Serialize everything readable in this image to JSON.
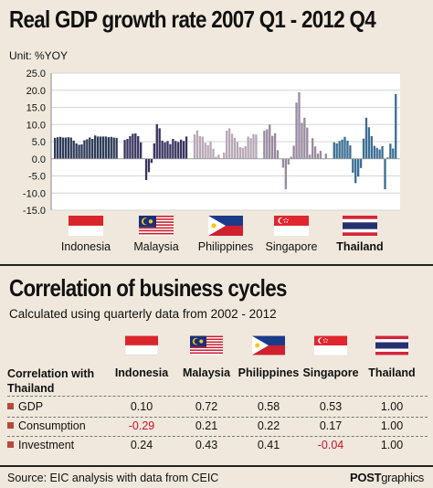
{
  "header": {
    "title": "Real GDP growth rate 2007 Q1 - 2012 Q4",
    "unit": "Unit: %YOY"
  },
  "chart_data": {
    "type": "bar",
    "title": "Real GDP growth rate 2007 Q1 - 2012 Q4",
    "ylabel": "%YOY",
    "ylim": [
      -15,
      25
    ],
    "yticks": [
      "25.0",
      "20.0",
      "15.0",
      "10.0",
      "5.0",
      "0.0",
      "-5.0",
      "-10.0",
      "-15.0"
    ],
    "grid": true,
    "series": [
      {
        "name": "Indonesia",
        "color": "#2e3d58",
        "values": [
          6.1,
          6.3,
          6.4,
          6.2,
          6.2,
          6.3,
          6.2,
          5.3,
          4.5,
          4.1,
          4.2,
          5.4,
          5.7,
          6.2,
          5.8,
          6.8,
          6.5,
          6.5,
          6.5,
          6.5,
          6.3,
          6.4,
          6.2,
          6.1
        ]
      },
      {
        "name": "Malaysia",
        "color": "#3a3560",
        "values": [
          5.5,
          5.8,
          6.6,
          7.3,
          7.4,
          6.6,
          4.8,
          0.1,
          -6.2,
          -3.9,
          -1.2,
          4.5,
          10.1,
          8.9,
          5.3,
          4.8,
          5.2,
          4.3,
          5.8,
          5.2,
          4.9,
          5.6,
          5.2,
          6.5
        ]
      },
      {
        "name": "Philippines",
        "color": "#b8a9b7",
        "values": [
          7.1,
          8.3,
          6.6,
          6.5,
          4.7,
          4.0,
          5.1,
          2.9,
          0.6,
          1.2,
          0.2,
          1.8,
          8.2,
          8.9,
          7.3,
          6.1,
          4.9,
          3.4,
          3.2,
          3.7,
          6.5,
          6.0,
          7.2,
          7.1
        ]
      },
      {
        "name": "Singapore",
        "color": "#9a8ba0",
        "values": [
          8.2,
          8.6,
          10.0,
          6.7,
          7.5,
          2.5,
          0.0,
          -2.6,
          -8.9,
          -1.7,
          0.6,
          3.8,
          16.4,
          19.4,
          10.5,
          12.0,
          9.1,
          1.2,
          6.0,
          3.6,
          1.5,
          2.3,
          0.0,
          1.5
        ]
      },
      {
        "name": "Thailand",
        "color": "#3b6f93",
        "values": [
          4.8,
          4.5,
          5.2,
          5.6,
          6.4,
          5.3,
          3.9,
          -4.1,
          -7.1,
          -5.2,
          -2.7,
          5.9,
          12.0,
          9.2,
          6.6,
          3.8,
          3.2,
          2.7,
          3.7,
          -8.9,
          0.4,
          4.4,
          3.0,
          18.9
        ]
      }
    ]
  },
  "flags": [
    {
      "country": "Indonesia",
      "bold": false
    },
    {
      "country": "Malaysia",
      "bold": false
    },
    {
      "country": "Philippines",
      "bold": false
    },
    {
      "country": "Singapore",
      "bold": false
    },
    {
      "country": "Thailand",
      "bold": true
    }
  ],
  "section2": {
    "title": "Correlation of business cycles",
    "subtitle": "Calculated using quarterly data from 2002 - 2012"
  },
  "table": {
    "row_header": "Correlation with\nThailand",
    "columns": [
      "Indonesia",
      "Malaysia",
      "Philippines",
      "Singapore",
      "Thailand"
    ],
    "rows": [
      {
        "label": "GDP",
        "values": [
          "0.10",
          "0.72",
          "0.58",
          "0.53",
          "1.00"
        ],
        "negative": [
          false,
          false,
          false,
          false,
          false
        ]
      },
      {
        "label": "Consumption",
        "values": [
          "-0.29",
          "0.21",
          "0.22",
          "0.17",
          "1.00"
        ],
        "negative": [
          true,
          false,
          false,
          false,
          false
        ]
      },
      {
        "label": "Investment",
        "values": [
          "0.24",
          "0.43",
          "0.41",
          "-0.04",
          "1.00"
        ],
        "negative": [
          false,
          false,
          false,
          true,
          false
        ]
      }
    ]
  },
  "footer": {
    "source": "Source: EIC analysis with data from CEIC",
    "brand_bold": "POST",
    "brand_rest": "graphics"
  }
}
